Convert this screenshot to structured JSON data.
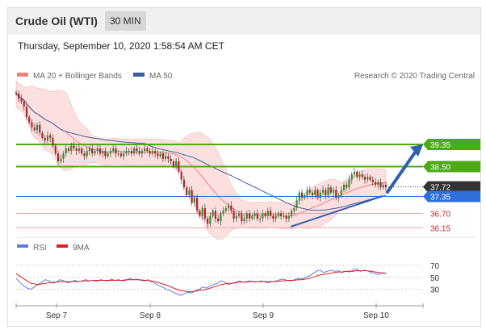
{
  "header": {
    "title": "Crude Oil (WTI)",
    "timeframe": "30 MIN",
    "timestamp": "Thursday, September 10, 2020 1:58:54 AM CET"
  },
  "chart_data": [
    {
      "type": "candlestick",
      "legend": [
        {
          "label": "MA 20 + Bollinger Bands",
          "color": "#f08080"
        },
        {
          "label": "MA 50",
          "color": "#3a5f9f"
        }
      ],
      "source": "Research © 2020 Trading Central",
      "x_tick_labels": [
        "Sep 7",
        "Sep 8",
        "Sep 9",
        "Sep 10"
      ],
      "y_range": [
        35.6,
        41.8
      ],
      "close_series": [
        41.3,
        41.1,
        41.0,
        40.8,
        40.4,
        40.2,
        40.0,
        39.9,
        40.1,
        39.8,
        39.6,
        39.5,
        39.7,
        39.6,
        39.3,
        39.0,
        38.7,
        38.8,
        39.0,
        39.2,
        39.1,
        39.3,
        39.2,
        39.1,
        39.2,
        39.0,
        38.9,
        39.1,
        39.2,
        39.0,
        39.1,
        39.2,
        39.0,
        39.1,
        38.9,
        39.0,
        39.1,
        39.2,
        39.0,
        39.0,
        38.9,
        39.0,
        39.1,
        39.1,
        39.0,
        39.2,
        39.1,
        39.0,
        39.1,
        39.2,
        39.1,
        39.0,
        39.1,
        39.0,
        38.9,
        39.0,
        38.8,
        38.9,
        38.8,
        38.7,
        38.5,
        38.7,
        38.3,
        38.0,
        37.7,
        37.4,
        37.6,
        37.1,
        37.3,
        36.8,
        36.6,
        36.9,
        36.5,
        36.3,
        36.6,
        36.8,
        36.5,
        36.4,
        36.7,
        36.8,
        36.9,
        37.0,
        36.8,
        36.5,
        36.6,
        36.7,
        36.4,
        36.5,
        36.7,
        36.5,
        36.6,
        36.7,
        36.5,
        36.5,
        36.7,
        36.6,
        36.8,
        36.6,
        36.5,
        36.6,
        36.7,
        36.6,
        36.6,
        36.5,
        36.6,
        36.8,
        36.9,
        37.2,
        37.5,
        37.3,
        37.4,
        37.6,
        37.5,
        37.4,
        37.6,
        37.3,
        37.5,
        37.6,
        37.4,
        37.7,
        37.5,
        37.6,
        37.3,
        37.4,
        37.6,
        37.8,
        37.7,
        38.0,
        38.2,
        38.3,
        38.1,
        38.2,
        38.1,
        38.0,
        38.1,
        38.0,
        37.9,
        37.8,
        37.9,
        37.7,
        37.8,
        37.7
      ],
      "horizontal_levels": [
        {
          "value": 39.35,
          "label": "39.35",
          "kind": "resistance",
          "color": "#4caa17"
        },
        {
          "value": 38.5,
          "label": "38.50",
          "kind": "resistance",
          "color": "#4caa17"
        },
        {
          "value": 37.72,
          "label": "37.72",
          "kind": "last price",
          "color": "#333333"
        },
        {
          "value": 37.35,
          "label": "37.35",
          "kind": "pivot",
          "color": "#2f6fdc"
        },
        {
          "value": 36.7,
          "label": "36.70",
          "kind": "support",
          "color": "#e05050"
        },
        {
          "value": 36.15,
          "label": "36.15",
          "kind": "support",
          "color": "#e05050"
        }
      ],
      "arrow_target": 39.35
    },
    {
      "type": "line",
      "legend": [
        {
          "label": "RSI",
          "color": "#5b7be0"
        },
        {
          "label": "9MA",
          "color": "#e02020"
        }
      ],
      "y_range": [
        12,
        82
      ],
      "y_tick_labels": [
        "70",
        "50",
        "30"
      ],
      "y_ticks": [
        70,
        50,
        30
      ],
      "series": [
        {
          "name": "RSI",
          "values": [
            48,
            42,
            36,
            32,
            30,
            34,
            38,
            42,
            46,
            44,
            40,
            42,
            46,
            44,
            41,
            42,
            45,
            43,
            44,
            46,
            44,
            45,
            43,
            46,
            45,
            44,
            47,
            45,
            46,
            44,
            45,
            48,
            46,
            47,
            45,
            44,
            46,
            42,
            40,
            36,
            34,
            30,
            28,
            25,
            22,
            20,
            23,
            25,
            24,
            28,
            30,
            34,
            32,
            36,
            38,
            40,
            44,
            42,
            38,
            40,
            42,
            44,
            42,
            43,
            44,
            42,
            43,
            44,
            42,
            41,
            43,
            44,
            46,
            47,
            45,
            44,
            46,
            48,
            47,
            50,
            52,
            56,
            60,
            62,
            58,
            60,
            62,
            60,
            61,
            58,
            60,
            59,
            62,
            64,
            60,
            62,
            61,
            58,
            56,
            55,
            58,
            56
          ]
        },
        {
          "name": "9MA",
          "values": [
            56,
            52,
            48,
            44,
            40,
            39,
            38,
            39,
            40,
            41,
            42,
            42,
            43,
            43,
            43,
            43,
            43,
            43,
            44,
            44,
            44,
            45,
            45,
            45,
            45,
            45,
            45,
            45,
            45,
            45,
            46,
            46,
            46,
            46,
            46,
            45,
            45,
            44,
            43,
            41,
            39,
            37,
            35,
            32,
            30,
            28,
            27,
            26,
            26,
            27,
            28,
            29,
            30,
            32,
            34,
            36,
            38,
            39,
            40,
            40,
            41,
            42,
            42,
            42,
            43,
            43,
            43,
            43,
            43,
            43,
            43,
            43,
            44,
            44,
            45,
            45,
            45,
            46,
            46,
            47,
            48,
            50,
            52,
            54,
            55,
            56,
            57,
            58,
            59,
            59,
            60,
            60,
            60,
            61,
            61,
            61,
            61,
            60,
            59,
            58,
            57,
            57
          ]
        }
      ]
    }
  ]
}
